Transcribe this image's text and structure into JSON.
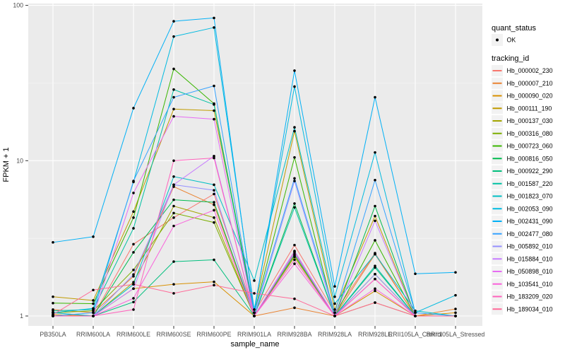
{
  "chart_data": {
    "type": "line",
    "title": "",
    "xlabel": "sample_name",
    "ylabel": "FPKM + 1",
    "y_scale": "log10",
    "y_ticks": [
      1,
      10,
      100
    ],
    "ylim": [
      1,
      100
    ],
    "grid": true,
    "legend_position": "right",
    "marker": "solid-black-point",
    "categories": [
      "PB350LA",
      "RRIM600LA",
      "RRIM600LE",
      "RRIM600SE",
      "RRIM600PE",
      "RRIM901LA",
      "RRIM928BA",
      "RRIM928LA",
      "RRIM928LE",
      "RRII105LA_Control",
      "RRII105LA_Stressed"
    ],
    "series": [
      {
        "name": "Hb_000002_230",
        "color": "#F8766D",
        "values": [
          1.05,
          1.0,
          2.9,
          4.3,
          6.1,
          1.05,
          2.86,
          1.05,
          2.54,
          1.0,
          1.0
        ]
      },
      {
        "name": "Hb_000007_210",
        "color": "#EA8331",
        "values": [
          1.1,
          1.05,
          1.8,
          6.8,
          5.2,
          1.0,
          1.13,
          1.0,
          2.5,
          1.0,
          1.11
        ]
      },
      {
        "name": "Hb_000090_020",
        "color": "#D89000",
        "values": [
          1.02,
          1.0,
          1.5,
          1.6,
          1.66,
          1.0,
          2.45,
          1.0,
          1.45,
          1.0,
          1.05
        ]
      },
      {
        "name": "Hb_000111_190",
        "color": "#C09B00",
        "values": [
          1.33,
          1.26,
          4.7,
          21.5,
          21.0,
          1.1,
          15.5,
          1.1,
          4.4,
          1.0,
          1.0
        ]
      },
      {
        "name": "Hb_000137_030",
        "color": "#A3A500",
        "values": [
          1.0,
          1.0,
          1.65,
          5.1,
          4.3,
          1.0,
          2.6,
          1.0,
          1.22,
          1.0,
          1.0
        ]
      },
      {
        "name": "Hb_000316_080",
        "color": "#7CAE00",
        "values": [
          1.05,
          1.08,
          1.98,
          4.6,
          4.0,
          1.0,
          2.4,
          1.0,
          1.86,
          1.0,
          1.0
        ]
      },
      {
        "name": "Hb_000723_060",
        "color": "#39B600",
        "values": [
          1.21,
          1.2,
          4.3,
          39.0,
          23.3,
          1.05,
          10.5,
          1.0,
          3.07,
          1.0,
          1.0
        ]
      },
      {
        "name": "Hb_000816_050",
        "color": "#00BB4E",
        "values": [
          1.0,
          1.0,
          2.57,
          5.6,
          5.4,
          1.0,
          5.3,
          1.0,
          5.1,
          1.0,
          1.0
        ]
      },
      {
        "name": "Hb_000922_290",
        "color": "#00BF7D",
        "values": [
          1.0,
          1.0,
          1.23,
          2.24,
          2.3,
          1.0,
          2.49,
          1.0,
          2.05,
          1.0,
          1.0
        ]
      },
      {
        "name": "Hb_001587_220",
        "color": "#00C1A3",
        "values": [
          1.08,
          1.1,
          3.67,
          28.7,
          23.0,
          1.0,
          5.0,
          1.0,
          2.1,
          1.0,
          1.0
        ]
      },
      {
        "name": "Hb_001823_070",
        "color": "#00BFC4",
        "values": [
          1.05,
          1.0,
          1.6,
          7.9,
          7.0,
          1.69,
          16.4,
          1.2,
          2.5,
          1.08,
          1.0
        ]
      },
      {
        "name": "Hb_002053_090",
        "color": "#00BAE0",
        "values": [
          1.05,
          1.12,
          7.3,
          63.0,
          72.0,
          1.1,
          30.0,
          1.33,
          11.3,
          1.05,
          1.36
        ]
      },
      {
        "name": "Hb_002431_090",
        "color": "#00B0F6",
        "values": [
          2.98,
          3.24,
          21.8,
          79.0,
          83.0,
          1.05,
          38.0,
          1.55,
          25.6,
          1.87,
          1.91
        ]
      },
      {
        "name": "Hb_002477_080",
        "color": "#35A2FF",
        "values": [
          1.0,
          1.05,
          7.4,
          25.6,
          30.3,
          1.05,
          7.7,
          1.05,
          7.5,
          1.05,
          1.0
        ]
      },
      {
        "name": "Hb_005892_010",
        "color": "#9590FF",
        "values": [
          1.0,
          1.0,
          1.85,
          7.0,
          6.45,
          1.0,
          7.4,
          1.0,
          1.86,
          1.0,
          1.0
        ]
      },
      {
        "name": "Hb_015884_010",
        "color": "#C77CFF",
        "values": [
          1.0,
          1.0,
          1.5,
          7.0,
          10.7,
          1.0,
          2.62,
          1.0,
          4.1,
          1.0,
          1.0
        ]
      },
      {
        "name": "Hb_050898_010",
        "color": "#E76BF3",
        "values": [
          1.0,
          1.0,
          6.2,
          19.3,
          18.5,
          1.0,
          2.55,
          1.0,
          1.73,
          1.0,
          1.0
        ]
      },
      {
        "name": "Hb_103541_010",
        "color": "#FA62DB",
        "values": [
          1.0,
          1.0,
          1.3,
          3.8,
          4.8,
          1.0,
          2.17,
          1.0,
          1.5,
          1.0,
          1.0
        ]
      },
      {
        "name": "Hb_183209_020",
        "color": "#FF62BC",
        "values": [
          1.0,
          1.0,
          1.1,
          10.0,
          10.4,
          1.0,
          2.3,
          1.0,
          1.73,
          1.0,
          1.0
        ]
      },
      {
        "name": "Hb_189034_010",
        "color": "#FF6A98",
        "values": [
          1.02,
          1.47,
          1.6,
          1.4,
          1.58,
          1.4,
          1.29,
          1.0,
          1.22,
          1.0,
          1.0
        ]
      }
    ],
    "legend": {
      "shape_title": "quant_status",
      "shape_label": "OK",
      "color_title": "tracking_id"
    },
    "colors": {
      "panel_bg": "#EBEBEB",
      "grid_major": "#FFFFFF",
      "grid_minor": "#F7F7F7",
      "tick_label": "#4D4D4D",
      "point": "#000000",
      "legend_key_bg": "#F2F2F2"
    }
  }
}
